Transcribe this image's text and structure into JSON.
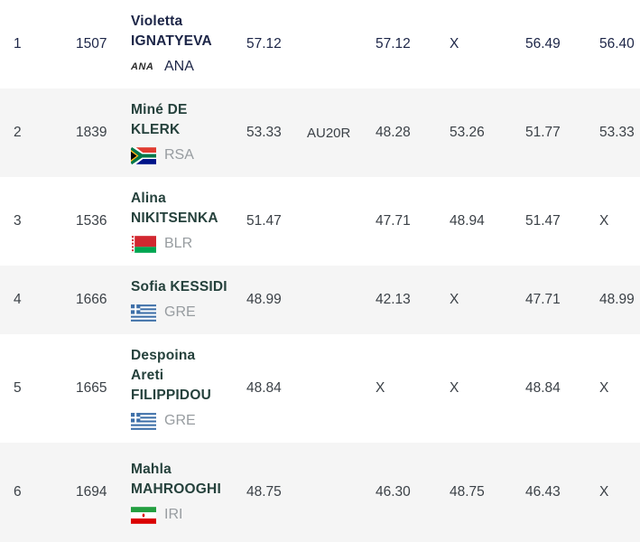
{
  "table": {
    "columns": [
      "rank",
      "bib",
      "athlete",
      "result",
      "note",
      "attempt1",
      "attempt2",
      "attempt3",
      "attempt4"
    ],
    "rows": [
      {
        "rank": "1",
        "bib": "1507",
        "name_lines": [
          "Violetta",
          "IGNATYEVA"
        ],
        "flag": "ANA",
        "country": "ANA",
        "result": "57.12",
        "note": "",
        "attempts": [
          "57.12",
          "X",
          "56.49",
          "56.40"
        ],
        "highlighted": true
      },
      {
        "rank": "2",
        "bib": "1839",
        "name_lines": [
          "Miné DE",
          "KLERK"
        ],
        "flag": "RSA",
        "country": "RSA",
        "result": "53.33",
        "note": "AU20R",
        "attempts": [
          "48.28",
          "53.26",
          "51.77",
          "53.33"
        ],
        "highlighted": false
      },
      {
        "rank": "3",
        "bib": "1536",
        "name_lines": [
          "Alina",
          "NIKITSENKA"
        ],
        "flag": "BLR",
        "country": "BLR",
        "result": "51.47",
        "note": "",
        "attempts": [
          "47.71",
          "48.94",
          "51.47",
          "X"
        ],
        "highlighted": false
      },
      {
        "rank": "4",
        "bib": "1666",
        "name_lines": [
          "Sofia KESSIDI"
        ],
        "flag": "GRE",
        "country": "GRE",
        "result": "48.99",
        "note": "",
        "attempts": [
          "42.13",
          "X",
          "47.71",
          "48.99"
        ],
        "highlighted": false
      },
      {
        "rank": "5",
        "bib": "1665",
        "name_lines": [
          "Despoina",
          "Areti",
          "FILIPPIDOU"
        ],
        "flag": "GRE",
        "country": "GRE",
        "result": "48.84",
        "note": "",
        "attempts": [
          "X",
          "X",
          "48.84",
          "X"
        ],
        "highlighted": false
      },
      {
        "rank": "6",
        "bib": "1694",
        "name_lines": [
          "Mahla",
          "MAHROOGHI"
        ],
        "flag": "IRI",
        "country": "IRI",
        "result": "48.75",
        "note": "",
        "attempts": [
          "46.30",
          "48.75",
          "46.43",
          "X"
        ],
        "highlighted": false
      }
    ]
  },
  "icons": {
    "ANA": "ana-wordmark-icon",
    "RSA": "south-africa-flag-icon",
    "BLR": "belarus-flag-icon",
    "GRE": "greece-flag-icon",
    "IRI": "iran-flag-icon"
  },
  "colors": {
    "highlight_text": "#1c2547",
    "body_text": "#3b4147",
    "name_text": "#25413c",
    "country_code_text": "#979ca0",
    "row_alt_bg": "#f5f5f5",
    "row_bg": "#ffffff"
  }
}
